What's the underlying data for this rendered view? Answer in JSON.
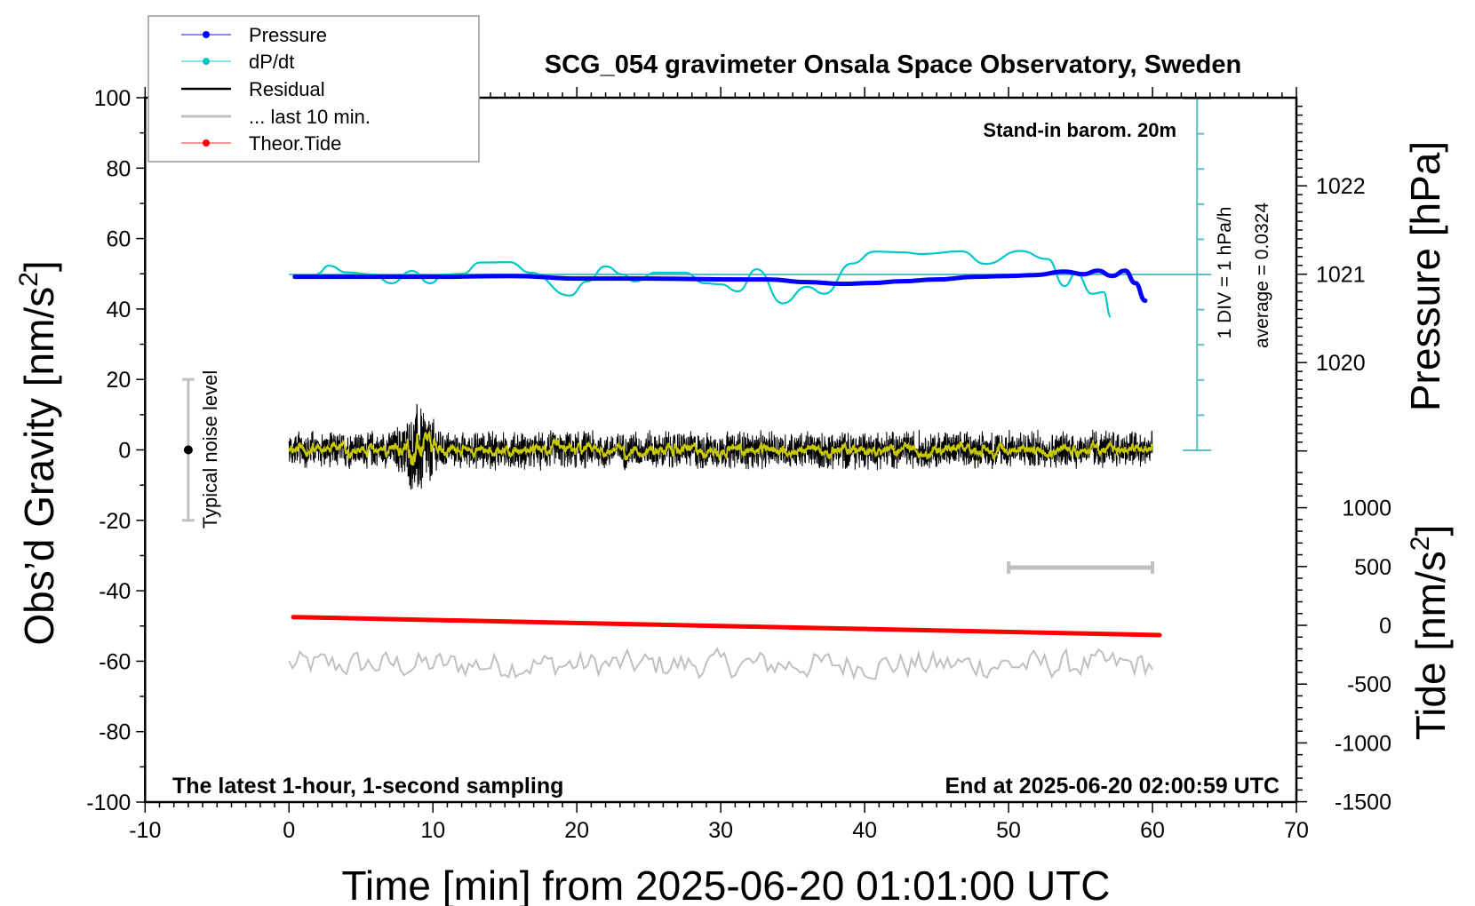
{
  "chart_data": {
    "type": "line",
    "title": "SCG_054 gravimeter Onsala Space Observatory, Sweden",
    "subtitle_right": "Stand-in barom. 20m",
    "note_bottom_left": "The latest 1-hour, 1-second sampling",
    "note_bottom_right": "End at 2025-06-20 02:00:59 UTC",
    "xlabel": "Time [min] from 2025-06-20 01:01:00 UTC",
    "ylabel_left": "Obs’d Gravity [nm/s",
    "ylabel_left_sup": "2",
    "ylabel_left_end": "]",
    "ylabel_right_pressure": "Pressure [hPa]",
    "ylabel_right_tide": "Tide [nm/s",
    "ylabel_right_tide_sup": "2",
    "ylabel_right_tide_end": "]",
    "xlim": [
      -10,
      70
    ],
    "ylim_left": [
      -100,
      100
    ],
    "x_ticks": [
      "-10",
      "0",
      "10",
      "20",
      "30",
      "40",
      "50",
      "60",
      "70"
    ],
    "y_ticks_left": [
      "100",
      "80",
      "60",
      "40",
      "20",
      "0",
      "-20",
      "-40",
      "-60",
      "-80",
      "-100"
    ],
    "pressure_ticks": [
      "1022",
      "1021",
      "1020"
    ],
    "tide_ticks": [
      "1000",
      "500",
      "0",
      "-500",
      "-1000",
      "-1500"
    ],
    "dpdt_scale_label": "1 DIV = 1 hPa/h",
    "dpdt_average_label": "average = 0.0324",
    "noise_label": "Typical noise level",
    "noise_level": {
      "t": -7,
      "center": 0,
      "half_range": 20
    },
    "window_bar_minutes": [
      50,
      60
    ],
    "legend": {
      "position": "top-left",
      "entries": [
        {
          "label": "Pressure",
          "color": "#0000ff"
        },
        {
          "label": "dP/dt",
          "color": "#00c8c8"
        },
        {
          "label": "Residual",
          "color": "#000000"
        },
        {
          "label": "... last 10 min.",
          "color": "#c0c0c0"
        },
        {
          "label": "Theor.Tide",
          "color": "#ff0000"
        }
      ]
    },
    "series": [
      {
        "name": "Pressure",
        "unit": "hPa",
        "color": "#0000ff",
        "x": [
          0.4,
          5,
          10,
          15.5,
          20.3,
          25,
          31.2,
          33.3,
          36,
          38.5,
          40.5,
          42.6,
          45,
          47.7,
          50,
          51.8,
          53.9,
          55.2,
          56.2,
          57.2,
          58.1,
          58.8,
          59.5
        ],
        "y": [
          1020.97,
          1020.97,
          1020.97,
          1020.98,
          1020.95,
          1020.95,
          1020.94,
          1020.94,
          1020.91,
          1020.89,
          1020.9,
          1020.92,
          1020.94,
          1020.97,
          1020.98,
          1020.99,
          1021.03,
          1021.0,
          1021.04,
          1020.98,
          1021.04,
          1020.9,
          1020.7
        ]
      },
      {
        "name": "dP/dt",
        "unit": "hPa/h",
        "color": "#00c8c8",
        "x": [
          1.96,
          2.78,
          4.0,
          5.85,
          7.1,
          8.55,
          9.8,
          10.8,
          12.05,
          13.3,
          15.3,
          16.8,
          19.5,
          20.7,
          22.0,
          23.2,
          24.0,
          25.5,
          27.5,
          28.9,
          30.0,
          31.2,
          32.5,
          34.3,
          36.0,
          37.2,
          39.1,
          40.7,
          42.6,
          44.0,
          46.7,
          48.4,
          50.8,
          52.7,
          53.9,
          54.7,
          55.8,
          56.6,
          57.1
        ],
        "y": [
          0.02,
          0.25,
          0.06,
          0.0,
          -0.25,
          0.1,
          -0.25,
          0.0,
          0.02,
          0.34,
          0.35,
          0.05,
          -0.6,
          -0.2,
          0.23,
          0.0,
          -0.2,
          0.05,
          0.05,
          -0.25,
          -0.28,
          -0.48,
          0.15,
          -0.82,
          -0.35,
          -0.55,
          0.31,
          0.65,
          0.63,
          0.58,
          0.66,
          0.3,
          0.67,
          0.44,
          -0.33,
          0.04,
          -0.55,
          -0.5,
          -1.21
        ]
      },
      {
        "name": "Residual",
        "unit": "nm/s2",
        "color": "#000000",
        "smoothed_color": "#c8c800",
        "x_range": [
          0,
          60
        ],
        "center": 0,
        "typical_amplitude": 5,
        "burst": {
          "t_start": 6.5,
          "t_end": 11,
          "peak_t": 9,
          "amplitude": 13
        }
      },
      {
        "name": "... last 10 min.",
        "unit": "nm/s2",
        "color": "#c0c0c0",
        "x_range": [
          0,
          60
        ],
        "center": -61,
        "typical_amplitude": 3.5
      },
      {
        "name": "Theor.Tide",
        "unit": "nm/s2",
        "color": "#ff0000",
        "x": [
          0.3,
          60.5
        ],
        "y": [
          70,
          -83
        ]
      }
    ]
  }
}
